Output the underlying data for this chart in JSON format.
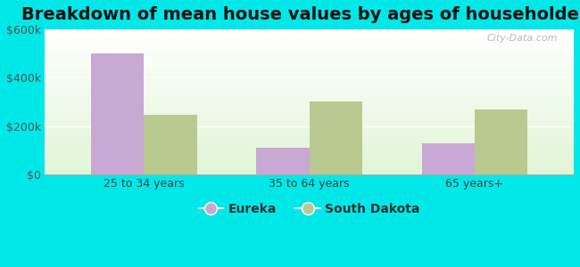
{
  "title": "Breakdown of mean house values by ages of householders",
  "categories": [
    "25 to 34 years",
    "35 to 64 years",
    "65 years+"
  ],
  "eureka_values": [
    500000,
    110000,
    130000
  ],
  "sd_values": [
    245000,
    300000,
    270000
  ],
  "eureka_color": "#c9a8d4",
  "sd_color": "#b8ca90",
  "ylim": [
    0,
    600000
  ],
  "yticks": [
    0,
    200000,
    400000,
    600000
  ],
  "ytick_labels": [
    "$0",
    "$200k",
    "$400k",
    "$600k"
  ],
  "legend_eureka": "Eureka",
  "legend_sd": "South Dakota",
  "bg_outer": "#00e8e8",
  "bar_width": 0.32,
  "title_fontsize": 14,
  "axis_fontsize": 9,
  "legend_fontsize": 10,
  "watermark": "City-Data.com"
}
